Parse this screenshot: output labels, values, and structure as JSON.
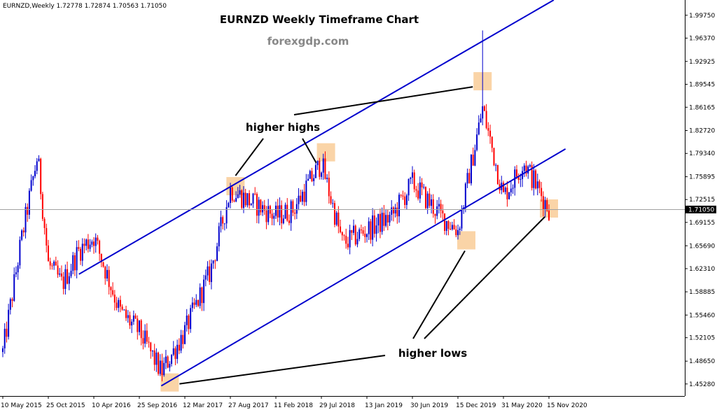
{
  "header": {
    "symbol_info": "EURNZD,Weekly  1.72778 1.72874 1.70563 1.71050"
  },
  "chart_data": {
    "type": "candlestick",
    "title": "EURNZD Weekly Timeframe Chart",
    "subtitle": "forexgdp.com",
    "current_price": 1.7105,
    "current_price_label": "1.71050",
    "ylim": [
      1.435,
      2.02
    ],
    "y_ticks": [
      1.4528,
      1.4865,
      1.5211,
      1.5546,
      1.5889,
      1.6231,
      1.6569,
      1.6915,
      1.7252,
      1.7589,
      1.7934,
      1.8272,
      1.8616,
      1.8955,
      1.9293,
      1.9637,
      1.9975
    ],
    "y_tick_labels": [
      "1.45280",
      "1.48650",
      "1.52105",
      "1.55460",
      "1.58885",
      "1.62310",
      "1.65690",
      "1.69155",
      "1.72515",
      "1.75895",
      "1.79340",
      "1.82720",
      "1.86165",
      "1.89545",
      "1.92925",
      "1.96370",
      "1.99750"
    ],
    "x_tick_labels": [
      "10 May 2015",
      "25 Oct 2015",
      "10 Apr 2016",
      "25 Sep 2016",
      "12 Mar 2017",
      "27 Aug 2017",
      "11 Feb 2018",
      "29 Jul 2018",
      "13 Jan 2019",
      "30 Jun 2019",
      "15 Dec 2019",
      "31 May 2020",
      "15 Nov 2020"
    ],
    "key_closes": [
      {
        "date": "10 May 2015",
        "value": 1.5
      },
      {
        "date": "Jul 2015",
        "value": 1.66
      },
      {
        "date": "Sep 2015",
        "value": 1.79
      },
      {
        "date": "25 Oct 2015",
        "value": 1.63
      },
      {
        "date": "Dec 2015",
        "value": 1.6
      },
      {
        "date": "Feb 2016",
        "value": 1.65
      },
      {
        "date": "10 Apr 2016",
        "value": 1.67
      },
      {
        "date": "Jul 2016",
        "value": 1.56
      },
      {
        "date": "25 Sep 2016",
        "value": 1.53
      },
      {
        "date": "Dec 2016",
        "value": 1.47
      },
      {
        "date": "12 Mar 2017",
        "value": 1.53
      },
      {
        "date": "Jun 2017",
        "value": 1.62
      },
      {
        "date": "27 Aug 2017",
        "value": 1.74
      },
      {
        "date": "11 Feb 2018",
        "value": 1.7
      },
      {
        "date": "Apr 2018",
        "value": 1.71
      },
      {
        "date": "29 Jul 2018",
        "value": 1.78
      },
      {
        "date": "Oct 2018",
        "value": 1.66
      },
      {
        "date": "13 Jan 2019",
        "value": 1.68
      },
      {
        "date": "Apr 2019",
        "value": 1.7
      },
      {
        "date": "30 Jun 2019",
        "value": 1.75
      },
      {
        "date": "Oct 2019",
        "value": 1.7
      },
      {
        "date": "15 Dec 2019",
        "value": 1.68
      },
      {
        "date": "Mar 2020",
        "value": 1.86
      },
      {
        "date": "31 May 2020",
        "value": 1.73
      },
      {
        "date": "Aug 2020",
        "value": 1.78
      },
      {
        "date": "15 Nov 2020",
        "value": 1.711
      }
    ],
    "spike_high": {
      "date": "Mar 2020",
      "value": 1.975
    },
    "trendlines": [
      {
        "name": "upper channel",
        "from": {
          "date": "Feb 2016",
          "value": 1.615
        },
        "to": {
          "date": "Jan 2021",
          "value": 2.03
        }
      },
      {
        "name": "lower channel",
        "from": {
          "date": "Dec 2016",
          "value": 1.45
        },
        "to": {
          "date": "Jan 2021",
          "value": 1.8
        }
      }
    ],
    "annotations": [
      {
        "text": "higher highs",
        "points": [
          {
            "date": "Sep 2017",
            "value": 1.745
          },
          {
            "date": "Aug 2018",
            "value": 1.795
          },
          {
            "date": "Mar 2020",
            "value": 1.9
          }
        ]
      },
      {
        "text": "higher lows",
        "points": [
          {
            "date": "Jan 2017",
            "value": 1.455
          },
          {
            "date": "Jan 2020",
            "value": 1.665
          },
          {
            "date": "Nov 2020",
            "value": 1.712
          }
        ]
      }
    ],
    "colors": {
      "bull": "#0000cd",
      "bear": "#ff0000",
      "trendline": "#0000cd",
      "highlight": "#f8c58a",
      "price_label_bg": "#000000"
    },
    "grid": false
  }
}
